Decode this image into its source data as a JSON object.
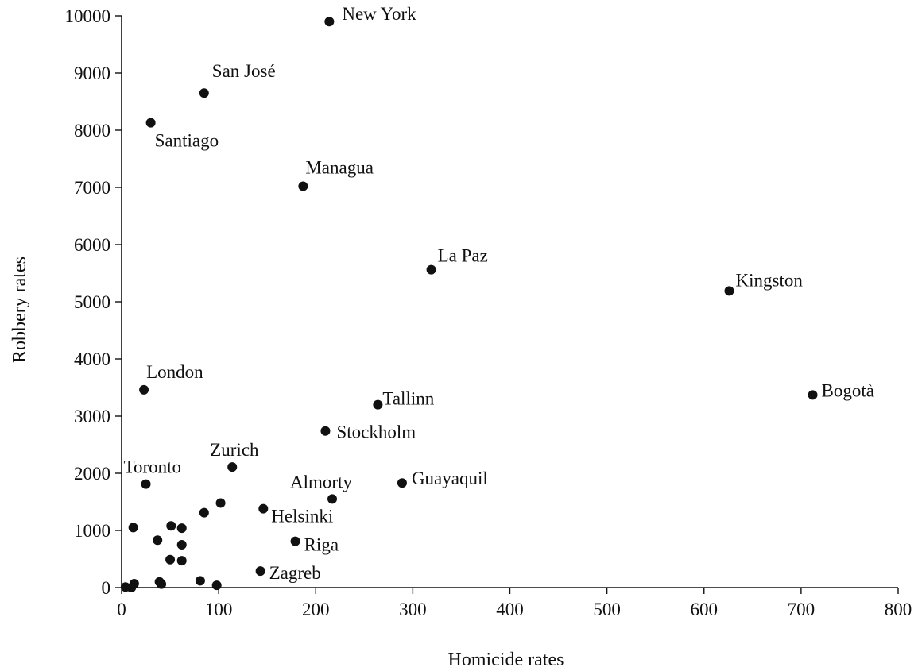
{
  "chart_data": {
    "type": "scatter",
    "title": "",
    "xlabel": "Homicide rates",
    "ylabel": "Robbery rates",
    "xlim": [
      0,
      800
    ],
    "ylim": [
      0,
      10000
    ],
    "xticks": [
      0,
      100,
      200,
      300,
      400,
      500,
      600,
      700,
      800
    ],
    "yticks": [
      0,
      1000,
      2000,
      3000,
      4000,
      5000,
      6000,
      7000,
      8000,
      9000,
      10000
    ],
    "grid": false,
    "legend": "none",
    "point_color": "#111111",
    "points": [
      {
        "label": "New York",
        "x": 214,
        "y": 9900
      },
      {
        "label": "San José",
        "x": 85,
        "y": 8650
      },
      {
        "label": "Santiago",
        "x": 30,
        "y": 8130
      },
      {
        "label": "Managua",
        "x": 187,
        "y": 7020
      },
      {
        "label": "La Paz",
        "x": 319,
        "y": 5560
      },
      {
        "label": "Kingston",
        "x": 626,
        "y": 5190
      },
      {
        "label": "London",
        "x": 23,
        "y": 3460
      },
      {
        "label": "Bogotà",
        "x": 712,
        "y": 3370
      },
      {
        "label": "Tallinn",
        "x": 264,
        "y": 3200
      },
      {
        "label": "Stockholm",
        "x": 210,
        "y": 2740
      },
      {
        "label": "Zurich",
        "x": 114,
        "y": 2110
      },
      {
        "label": "Toronto",
        "x": 25,
        "y": 1810
      },
      {
        "label": "Guayaquil",
        "x": 289,
        "y": 1830
      },
      {
        "label": "Almorty",
        "x": 217,
        "y": 1550
      },
      {
        "label": "Helsinki",
        "x": 146,
        "y": 1380
      },
      {
        "label": "Riga",
        "x": 179,
        "y": 810
      },
      {
        "label": "Zagreb",
        "x": 143,
        "y": 290
      },
      {
        "label": "",
        "x": 102,
        "y": 1480
      },
      {
        "label": "",
        "x": 85,
        "y": 1310
      },
      {
        "label": "",
        "x": 12,
        "y": 1050
      },
      {
        "label": "",
        "x": 51,
        "y": 1080
      },
      {
        "label": "",
        "x": 62,
        "y": 1040
      },
      {
        "label": "",
        "x": 37,
        "y": 830
      },
      {
        "label": "",
        "x": 62,
        "y": 750
      },
      {
        "label": "",
        "x": 50,
        "y": 490
      },
      {
        "label": "",
        "x": 62,
        "y": 470
      },
      {
        "label": "",
        "x": 81,
        "y": 120
      },
      {
        "label": "",
        "x": 39,
        "y": 100
      },
      {
        "label": "",
        "x": 41,
        "y": 60
      },
      {
        "label": "",
        "x": 13,
        "y": 70
      },
      {
        "label": "",
        "x": 4,
        "y": 10
      },
      {
        "label": "",
        "x": 10,
        "y": 0
      },
      {
        "label": "",
        "x": 98,
        "y": 40
      }
    ]
  }
}
